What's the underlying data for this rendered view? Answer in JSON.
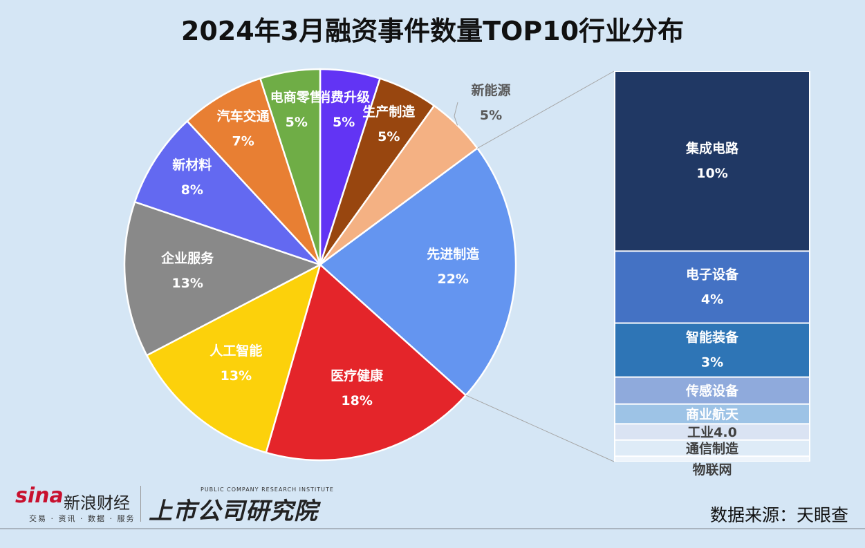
{
  "title": "2024年3月融资事件数量TOP10行业分布",
  "source": "数据来源：天眼查",
  "logos": {
    "sina": "sina",
    "sina_cn": "新浪财经",
    "sina_sub": "交易 · 资讯 · 数据 · 服务",
    "institute": "上市公司研究院",
    "institute_en": "PUBLIC COMPANY RESEARCH INSTITUTE"
  },
  "chart_data": {
    "type": "pie",
    "subtype": "bar-of-pie",
    "start_angle_deg": 0,
    "direction": "clockwise",
    "slices": [
      {
        "label": "消费升级",
        "value": 5,
        "value_label": "5%",
        "color": "#6234f4"
      },
      {
        "label": "生产制造",
        "value": 5,
        "value_label": "5%",
        "color": "#98460f"
      },
      {
        "label": "新能源",
        "value": 5,
        "value_label": "5%",
        "color": "#f4b183"
      },
      {
        "label": "先进制造",
        "value": 22,
        "value_label": "22%",
        "color": "#6495f0",
        "exploded_to_bar": true
      },
      {
        "label": "医疗健康",
        "value": 18,
        "value_label": "18%",
        "color": "#e4252a"
      },
      {
        "label": "人工智能",
        "value": 13,
        "value_label": "13%",
        "color": "#fcd10b"
      },
      {
        "label": "企业服务",
        "value": 13,
        "value_label": "13%",
        "color": "#898989"
      },
      {
        "label": "新材料",
        "value": 8,
        "value_label": "8%",
        "color": "#6369f1"
      },
      {
        "label": "汽车交通",
        "value": 7,
        "value_label": "7%",
        "color": "#e87f33"
      },
      {
        "label": "电商零售",
        "value": 5,
        "value_label": "5%",
        "color": "#6fad46"
      }
    ],
    "bar": [
      {
        "label": "集成电路",
        "value": 10,
        "value_label": "10%",
        "color": "#203864"
      },
      {
        "label": "电子设备",
        "value": 4,
        "value_label": "4%",
        "color": "#4472c4"
      },
      {
        "label": "智能装备",
        "value": 3,
        "value_label": "3%",
        "color": "#2e75b6"
      },
      {
        "label": "传感设备",
        "value": 1.5,
        "color": "#8faadc"
      },
      {
        "label": "商业航天",
        "value": 1.1,
        "color": "#9dc3e6"
      },
      {
        "label": "工业4.0",
        "value": 0.9,
        "color": "#dae3f3"
      },
      {
        "label": "通信制造",
        "value": 0.9,
        "color": "#deebf7"
      },
      {
        "label": "物联网",
        "value": 0.3,
        "color": "#eef4fb"
      }
    ]
  }
}
